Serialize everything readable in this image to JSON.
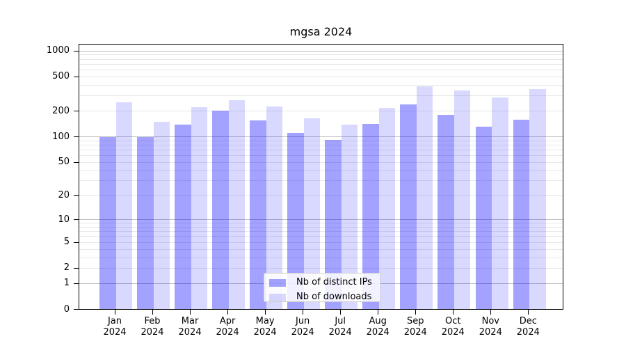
{
  "title": "mgsa 2024",
  "chart_data": {
    "type": "bar",
    "title": "mgsa 2024",
    "scale": "log1p",
    "grid": true,
    "categories": [
      "Jan",
      "Feb",
      "Mar",
      "Apr",
      "May",
      "Jun",
      "Jul",
      "Aug",
      "Sep",
      "Oct",
      "Nov",
      "Dec"
    ],
    "year_label": "2024",
    "series": [
      {
        "name": "Nb of distinct IPs",
        "color": "#0000ff",
        "alpha": 0.36,
        "values": [
          100,
          100,
          140,
          202,
          155,
          112,
          92,
          141,
          237,
          182,
          132,
          158
        ]
      },
      {
        "name": "Nb of downloads",
        "color": "#0000ff",
        "alpha": 0.15,
        "values": [
          254,
          151,
          221,
          268,
          227,
          163,
          138,
          218,
          389,
          348,
          288,
          361
        ]
      }
    ],
    "yticks": [
      1000,
      500,
      200,
      100,
      50,
      20,
      10,
      5,
      2,
      1,
      0
    ],
    "major_gridlines": [
      1,
      10,
      100,
      1000
    ],
    "ylim": [
      0,
      1223
    ],
    "legend_position": "bottom-center-inside"
  },
  "colors": {
    "background": "#ffffff",
    "axis": "#000000",
    "grid_minor": "#e8e8e8",
    "grid_major": "#bcbcbc",
    "bar_dark_rendered": "#a3a3ff",
    "bar_light_rendered": "#d9d9ff",
    "legend_border": "#cfcfcf"
  }
}
